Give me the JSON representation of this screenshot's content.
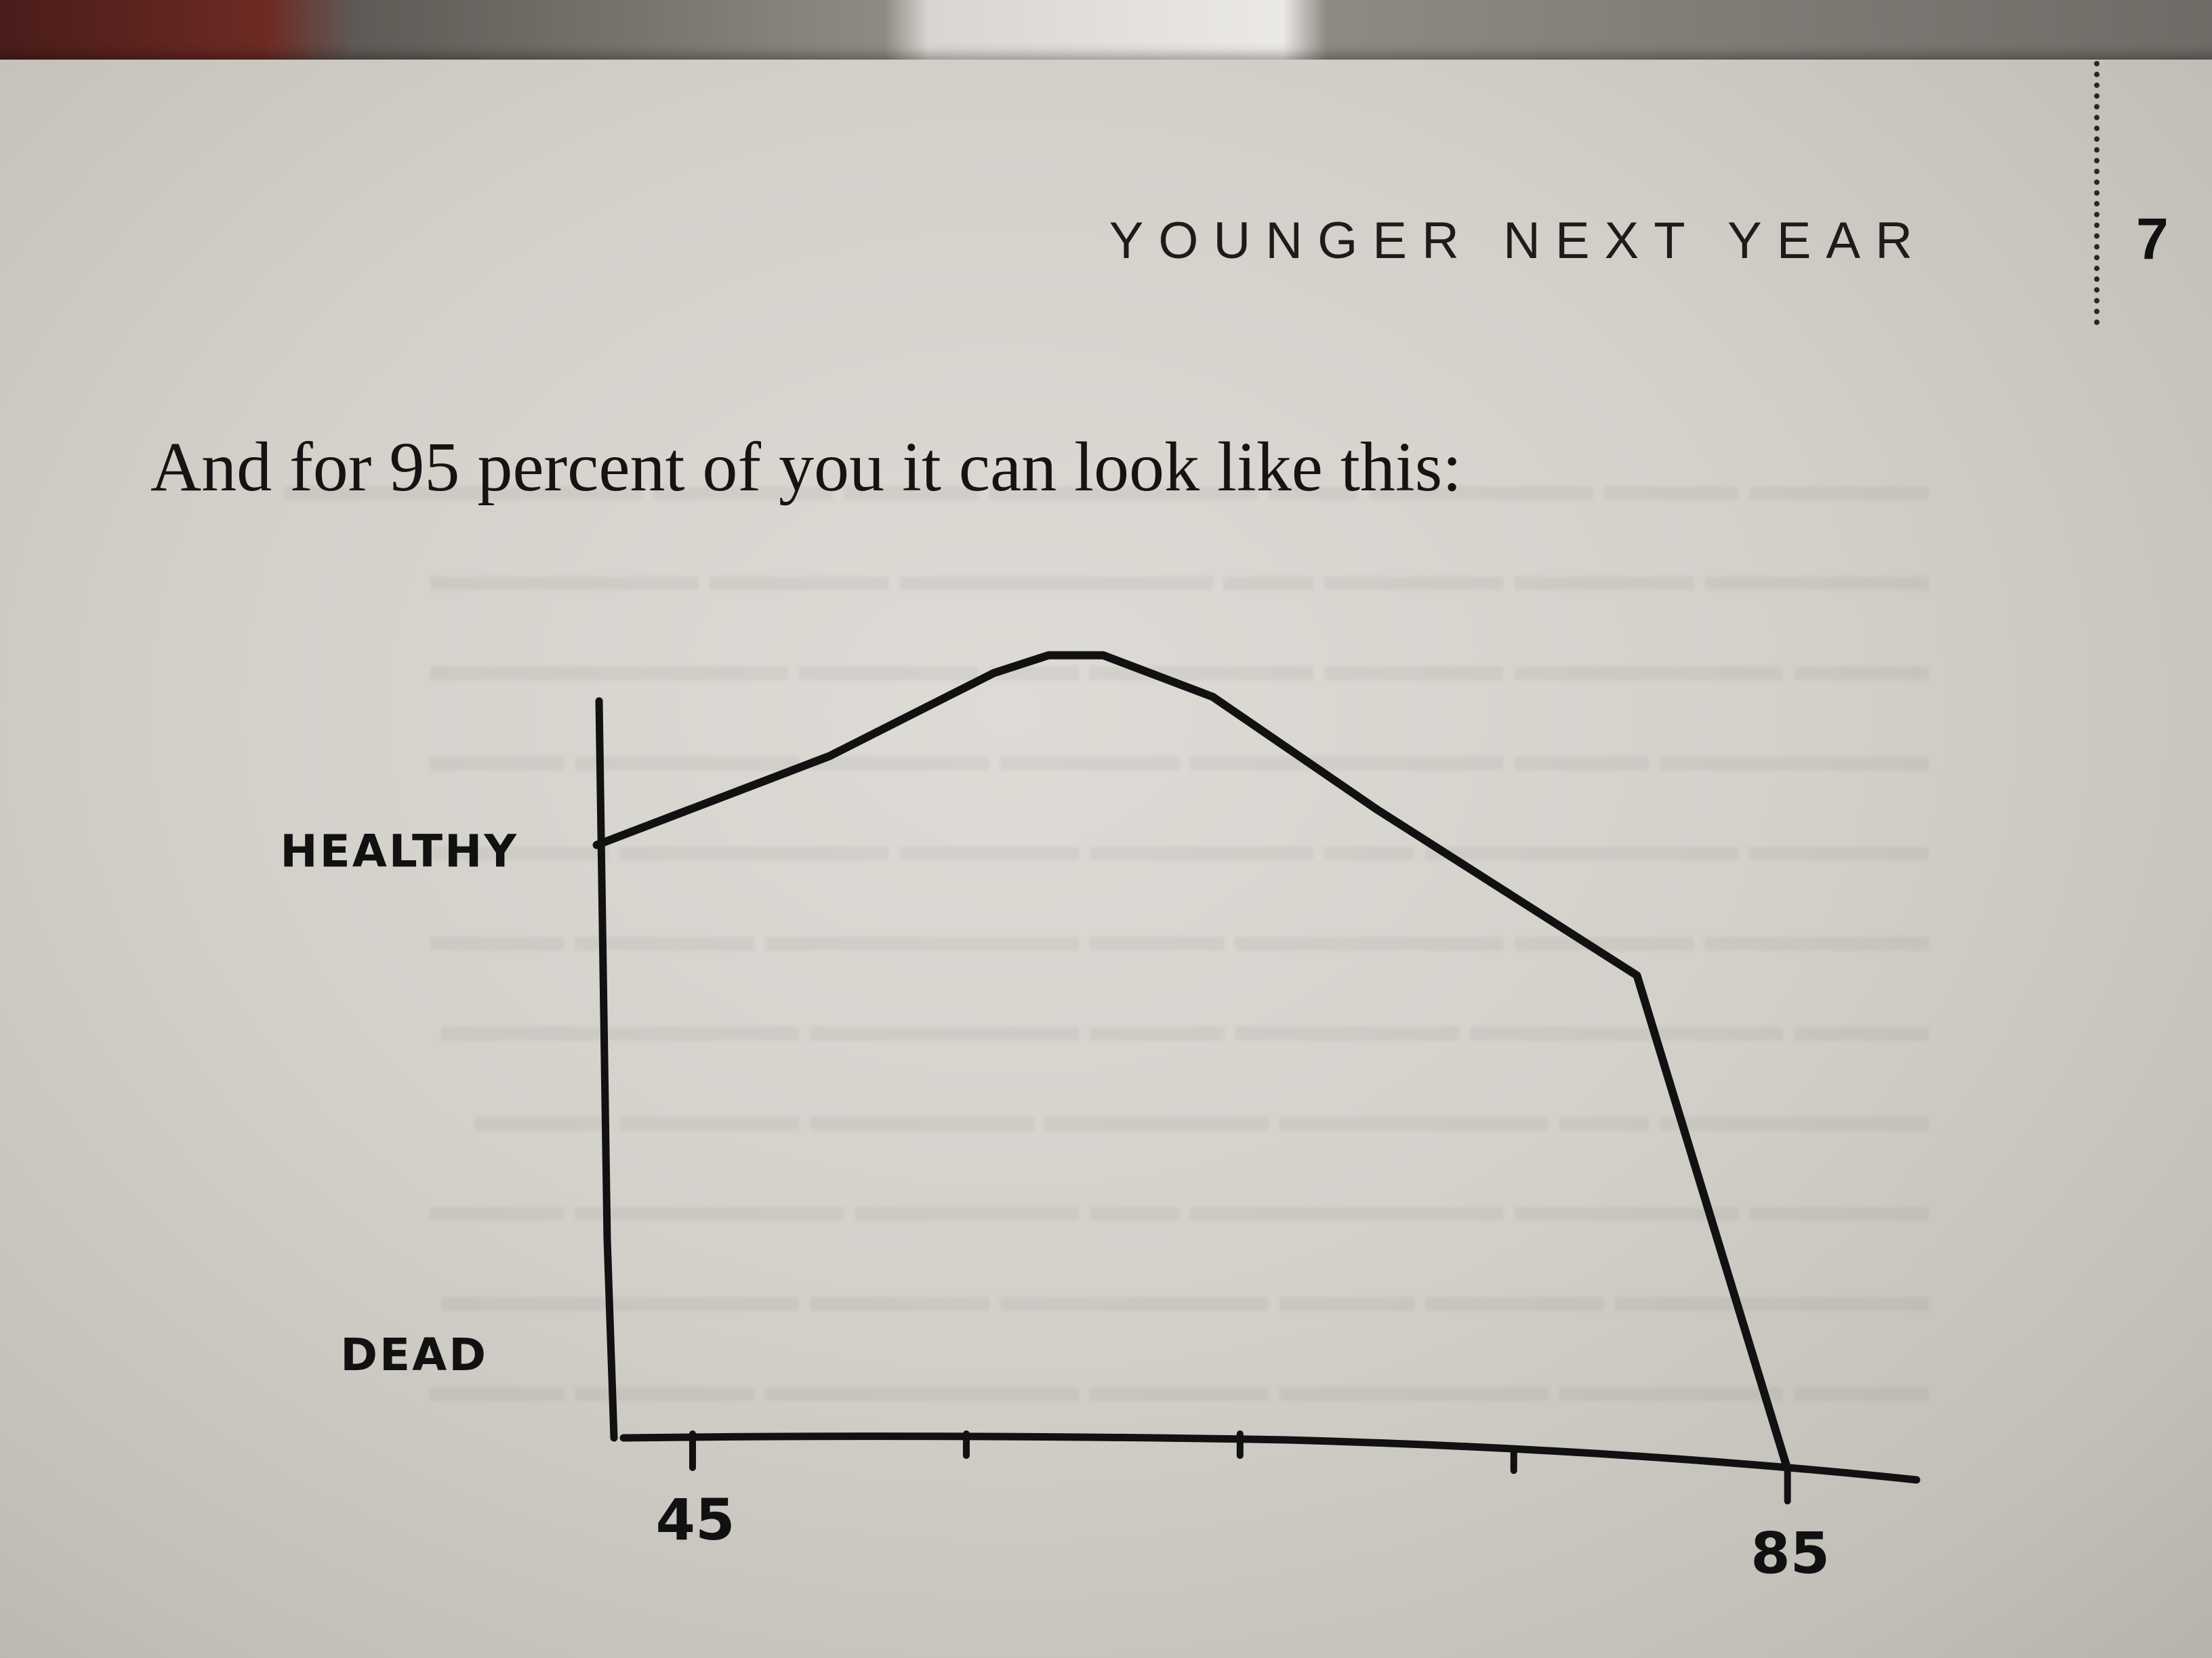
{
  "header": {
    "running_head": "YOUNGER NEXT YEAR",
    "page_number": "7"
  },
  "body": {
    "text": "And for 95 percent of you it can look like this:"
  },
  "chart_data": {
    "type": "line",
    "title": "",
    "xlabel": "",
    "ylabel": "",
    "x_ticks": [
      {
        "value": 45,
        "label": "45"
      },
      {
        "value": 55,
        "label": ""
      },
      {
        "value": 65,
        "label": ""
      },
      {
        "value": 75,
        "label": ""
      },
      {
        "value": 85,
        "label": "85"
      }
    ],
    "y_labels": [
      {
        "value": 1,
        "label": "HEALTHY"
      },
      {
        "value": 0,
        "label": "DEAD"
      }
    ],
    "xlim": [
      40,
      91
    ],
    "ylim": [
      -0.03,
      1.42
    ],
    "grid": false,
    "series": [
      {
        "x": [
          41.5,
          50,
          56,
          58,
          60,
          64,
          70,
          79.5,
          85
        ],
        "y": [
          1.0,
          1.15,
          1.29,
          1.32,
          1.32,
          1.25,
          1.06,
          0.78,
          0.0
        ]
      }
    ]
  }
}
